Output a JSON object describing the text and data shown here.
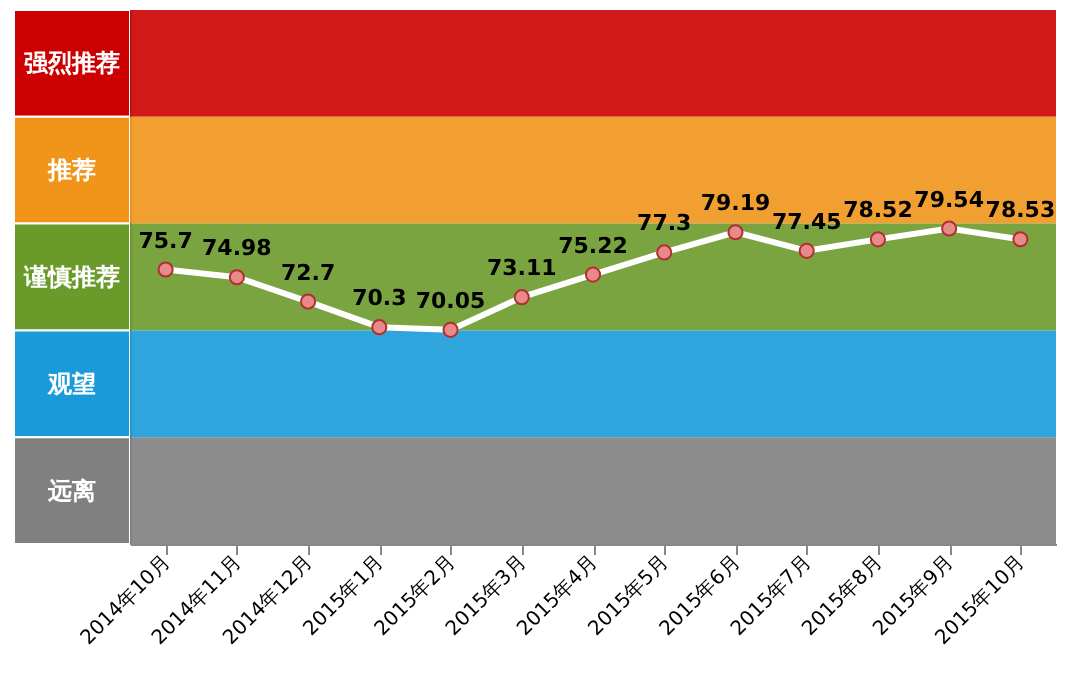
{
  "chart_data": {
    "type": "line",
    "categories": [
      "2014年10月",
      "2014年11月",
      "2014年12月",
      "2015年1月",
      "2015年2月",
      "2015年3月",
      "2015年4月",
      "2015年5月",
      "2015年6月",
      "2015年7月",
      "2015年8月",
      "2015年9月",
      "2015年10月"
    ],
    "series": [
      {
        "color": "#ffffff",
        "values": [
          75.7,
          74.98,
          72.7,
          70.3,
          70.05,
          73.11,
          75.22,
          77.3,
          79.19,
          77.45,
          78.52,
          79.54,
          78.53
        ]
      }
    ],
    "ylim": [
      50,
      100
    ],
    "bands": [
      {
        "axis": "y",
        "from": 90,
        "to": 100,
        "label": "强烈推荐",
        "color": "#cc0000"
      },
      {
        "axis": "y",
        "from": 80,
        "to": 90,
        "label": "推荐",
        "color": "#f0951a"
      },
      {
        "axis": "y",
        "from": 70,
        "to": 80,
        "label": "谨慎推荐",
        "color": "#6a9a2a"
      },
      {
        "axis": "y",
        "from": 60,
        "to": 70,
        "label": "观望",
        "color": "#1a9ad8"
      },
      {
        "axis": "y",
        "from": 50,
        "to": 60,
        "label": "远离",
        "color": "#808080"
      }
    ],
    "marker": "circle",
    "data_labels": true,
    "grid": false,
    "tick_labels": "x"
  }
}
